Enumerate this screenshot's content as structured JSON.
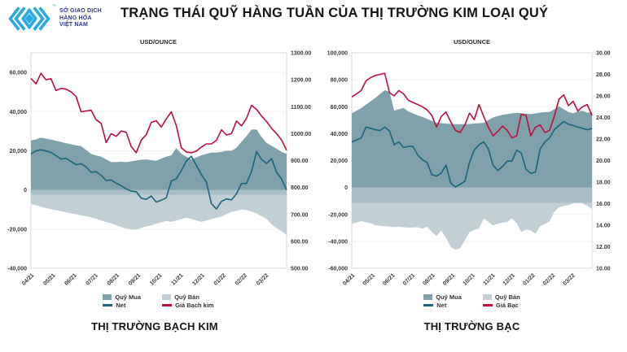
{
  "header": {
    "title": "TRẠNG THÁI QUỸ HÀNG TUẦN CỦA THỊ TRƯỜNG KIM LOẠI QUÝ",
    "logo_lines": [
      "SỞ GIAO DỊCH",
      "HÀNG HÓA",
      "VIỆT NAM"
    ],
    "trademark": "™"
  },
  "colors": {
    "brand_blue": "#29abe2",
    "brand_navy": "#2b3990",
    "buy_area": "#7fa1ab",
    "sell_area": "#c1ced4",
    "sell_band": "#a9bec7",
    "net_line": "#18657d",
    "price_line": "#bf0f3a",
    "axis_text": "#3a3a3a",
    "plot_border": "#d9d9d9",
    "gridline": "#f2f2f2"
  },
  "chart_data": [
    {
      "type": "area",
      "subtype": "combo area+line, dual axis, weekly data",
      "unit_label": "USD/OUNCE",
      "footer_title": "THỊ TRƯỜNG BẠCH KIM",
      "x_labels": [
        "04/21",
        "05/21",
        "06/21",
        "07/21",
        "08/21",
        "09/21",
        "10/21",
        "11/21",
        "12/21",
        "01/22",
        "02/22",
        "03/22"
      ],
      "left_axis": {
        "min": -40000,
        "max": 70000,
        "tick_values": [
          60000,
          40000,
          20000,
          0,
          -20000,
          -40000
        ],
        "tick_labels": [
          "60,000",
          "40,000",
          "20,000",
          "0",
          "-20,000",
          "-40,000"
        ]
      },
      "right_axis": {
        "min": 500,
        "max": 1300,
        "tick_values": [
          1300,
          1200,
          1100,
          1000,
          900,
          800,
          700,
          600,
          500
        ],
        "tick_labels": [
          "1300.00",
          "1200.00",
          "1100.00",
          "1000.00",
          "900.00",
          "800.00",
          "700.00",
          "600.00",
          "500.00"
        ]
      },
      "zero_band_to": -2500,
      "series": [
        {
          "name": "Quỹ Mua",
          "type": "area",
          "axis": "left",
          "color": "#7fa1ab",
          "values": [
            25300,
            25800,
            26700,
            26200,
            25700,
            25100,
            24500,
            23900,
            23300,
            22800,
            22400,
            20400,
            18400,
            17600,
            17000,
            15600,
            14200,
            14200,
            14400,
            14200,
            14600,
            15000,
            15400,
            15600,
            15200,
            14900,
            16000,
            17000,
            17700,
            21400,
            18500,
            17000,
            15600,
            16600,
            17700,
            18400,
            19100,
            19100,
            19500,
            20000,
            20000,
            21500,
            24600,
            27500,
            30800,
            30900,
            27000,
            24000,
            22500,
            21000,
            19500,
            18400
          ]
        },
        {
          "name": "Quỹ Bán",
          "type": "area",
          "axis": "left",
          "color": "#c1ced4",
          "values": [
            -7200,
            -7800,
            -8600,
            -9300,
            -9800,
            -10300,
            -10800,
            -11400,
            -12000,
            -12400,
            -13000,
            -13400,
            -14000,
            -14800,
            -15600,
            -16500,
            -17000,
            -18000,
            -19000,
            -19800,
            -20200,
            -20200,
            -19400,
            -18600,
            -18100,
            -17200,
            -16500,
            -15800,
            -16300,
            -15600,
            -14900,
            -14200,
            -14800,
            -15600,
            -16300,
            -15600,
            -14900,
            -14200,
            -13700,
            -12400,
            -11200,
            -10700,
            -10000,
            -10300,
            -11000,
            -12000,
            -13400,
            -14800,
            -17600,
            -19500,
            -21000,
            -23100
          ]
        },
        {
          "name": "Net",
          "type": "line",
          "axis": "left",
          "color": "#18657d",
          "values": [
            18400,
            20000,
            20500,
            19900,
            19200,
            17500,
            15800,
            16100,
            14500,
            12900,
            13400,
            11800,
            9000,
            9300,
            7500,
            4800,
            5100,
            3400,
            2200,
            500,
            -600,
            -900,
            -4200,
            -4800,
            -3100,
            -6200,
            -5200,
            -4000,
            4600,
            5700,
            9800,
            14800,
            17200,
            12500,
            7800,
            4000,
            -7000,
            -9800,
            -5800,
            -4600,
            -5100,
            -2000,
            3300,
            3300,
            9400,
            19500,
            15600,
            13500,
            16000,
            9000,
            5500,
            0
          ]
        },
        {
          "name": "Giá Bạch kim",
          "type": "line",
          "axis": "right",
          "color": "#bf0f3a",
          "values": [
            1205,
            1185,
            1224,
            1200,
            1204,
            1160,
            1168,
            1165,
            1155,
            1138,
            1081,
            1084,
            1087,
            1052,
            1038,
            967,
            1000,
            990,
            1010,
            1005,
            952,
            929,
            976,
            996,
            1042,
            1048,
            1024,
            1055,
            1081,
            1030,
            947,
            932,
            929,
            935,
            950,
            962,
            962,
            975,
            1014,
            995,
            1000,
            1047,
            1029,
            1057,
            1105,
            1090,
            1065,
            1045,
            1020,
            1000,
            976,
            938
          ]
        }
      ]
    },
    {
      "type": "area",
      "subtype": "combo area+line, dual axis, weekly data",
      "unit_label": "USD/OUNCE",
      "footer_title": "THỊ TRƯỜNG BẠC",
      "x_labels": [
        "04/21",
        "05/21",
        "06/21",
        "07/21",
        "08/21",
        "09/21",
        "10/21",
        "11/21",
        "12/21",
        "01/22",
        "02/22",
        "03/22"
      ],
      "left_axis": {
        "min": -60000,
        "max": 100000,
        "tick_values": [
          100000,
          80000,
          60000,
          40000,
          20000,
          0,
          -20000,
          -40000,
          -60000
        ],
        "tick_labels": [
          "100,000",
          "80,000",
          "60,000",
          "40,000",
          "20,000",
          "0",
          "-20,000",
          "-40,000",
          "-60,000"
        ]
      },
      "right_axis": {
        "min": 10,
        "max": 30,
        "tick_values": [
          30,
          28,
          26,
          24,
          22,
          20,
          18,
          16,
          14,
          12,
          10
        ],
        "tick_labels": [
          "30.00",
          "28.00",
          "26.00",
          "24.00",
          "22.00",
          "20.00",
          "18.00",
          "16.00",
          "14.00",
          "12.00",
          "10.00"
        ]
      },
      "zero_band_to": -11500,
      "series": [
        {
          "name": "Quỹ Mua",
          "type": "area",
          "axis": "left",
          "color": "#7fa1ab",
          "values": [
            55000,
            57000,
            59000,
            61500,
            64000,
            66500,
            69500,
            72300,
            71000,
            57100,
            58100,
            59000,
            56500,
            55000,
            53500,
            52500,
            51000,
            49500,
            48000,
            47800,
            47500,
            47200,
            47000,
            47000,
            47000,
            47200,
            47500,
            47800,
            48000,
            50000,
            52000,
            53000,
            54000,
            54500,
            55000,
            55500,
            55100,
            54800,
            54500,
            55000,
            55600,
            56000,
            56100,
            58100,
            60200,
            58100,
            56100,
            55100,
            56500,
            57000,
            55500,
            56000
          ]
        },
        {
          "name": "Quỹ Bán",
          "type": "area",
          "axis": "left",
          "color": "#c1ced4",
          "values": [
            -27000,
            -26000,
            -25000,
            -25800,
            -26500,
            -28000,
            -28500,
            -28800,
            -29000,
            -29400,
            -29200,
            -29500,
            -29800,
            -29600,
            -29500,
            -30600,
            -29000,
            -33100,
            -36100,
            -32000,
            -37300,
            -44200,
            -46300,
            -45200,
            -39200,
            -33100,
            -31500,
            -30500,
            -22900,
            -25500,
            -28200,
            -27000,
            -26000,
            -25500,
            -22900,
            -26500,
            -33100,
            -31200,
            -31900,
            -34300,
            -28800,
            -27000,
            -25200,
            -18000,
            -14800,
            -13600,
            -13000,
            -11800,
            -10600,
            -11800,
            -13600,
            -16000
          ]
        },
        {
          "name": "Net",
          "type": "line",
          "axis": "left",
          "color": "#18657d",
          "values": [
            33800,
            35300,
            36800,
            44900,
            44000,
            42900,
            42300,
            44900,
            42000,
            31800,
            33800,
            29700,
            30500,
            30500,
            24000,
            20600,
            18600,
            9500,
            8400,
            10700,
            16600,
            3400,
            400,
            2400,
            4500,
            18600,
            27700,
            31800,
            33800,
            28700,
            16600,
            12500,
            15600,
            19600,
            19600,
            27700,
            25700,
            13500,
            10500,
            11400,
            28700,
            33800,
            36800,
            42900,
            46000,
            49000,
            47000,
            46000,
            44900,
            43900,
            42900,
            43900
          ]
        },
        {
          "name": "Giá Bạc",
          "type": "line",
          "axis": "right",
          "color": "#bf0f3a",
          "values": [
            25.9,
            26.2,
            26.5,
            27.4,
            27.7,
            27.9,
            28.0,
            28.1,
            26.3,
            26.0,
            26.5,
            26.2,
            25.6,
            25.4,
            25.2,
            25.0,
            24.7,
            24.2,
            23.1,
            24.1,
            24.5,
            23.6,
            22.8,
            22.6,
            23.3,
            24.4,
            23.8,
            25.2,
            24.1,
            23.1,
            22.3,
            22.7,
            23.2,
            22.8,
            22.1,
            22.3,
            24.3,
            24.2,
            22.3,
            23.1,
            23.3,
            22.6,
            22.8,
            24.1,
            25.7,
            26.1,
            25.1,
            25.5,
            24.6,
            25.0,
            25.2,
            24.2
          ]
        }
      ]
    }
  ]
}
